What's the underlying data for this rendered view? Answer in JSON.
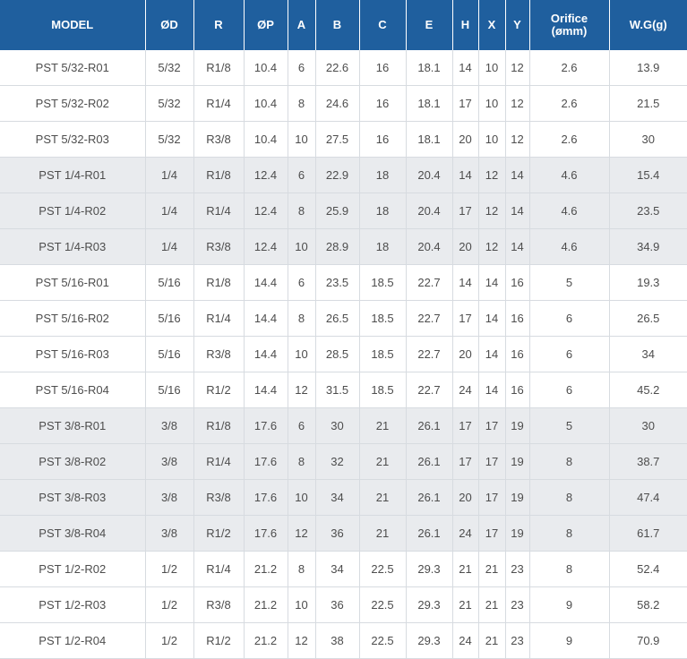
{
  "table": {
    "headers": [
      "MODEL",
      "ØD",
      "R",
      "ØP",
      "A",
      "B",
      "C",
      "E",
      "H",
      "X",
      "Y",
      "Orifice\n(ømm)",
      "W.G(g)"
    ],
    "rows": [
      {
        "shaded": false,
        "cells": [
          "PST 5/32-R01",
          "5/32",
          "R1/8",
          "10.4",
          "6",
          "22.6",
          "16",
          "18.1",
          "14",
          "10",
          "12",
          "2.6",
          "13.9"
        ]
      },
      {
        "shaded": false,
        "cells": [
          "PST 5/32-R02",
          "5/32",
          "R1/4",
          "10.4",
          "8",
          "24.6",
          "16",
          "18.1",
          "17",
          "10",
          "12",
          "2.6",
          "21.5"
        ]
      },
      {
        "shaded": false,
        "cells": [
          "PST 5/32-R03",
          "5/32",
          "R3/8",
          "10.4",
          "10",
          "27.5",
          "16",
          "18.1",
          "20",
          "10",
          "12",
          "2.6",
          "30"
        ]
      },
      {
        "shaded": true,
        "cells": [
          "PST 1/4-R01",
          "1/4",
          "R1/8",
          "12.4",
          "6",
          "22.9",
          "18",
          "20.4",
          "14",
          "12",
          "14",
          "4.6",
          "15.4"
        ]
      },
      {
        "shaded": true,
        "cells": [
          "PST 1/4-R02",
          "1/4",
          "R1/4",
          "12.4",
          "8",
          "25.9",
          "18",
          "20.4",
          "17",
          "12",
          "14",
          "4.6",
          "23.5"
        ]
      },
      {
        "shaded": true,
        "cells": [
          "PST 1/4-R03",
          "1/4",
          "R3/8",
          "12.4",
          "10",
          "28.9",
          "18",
          "20.4",
          "20",
          "12",
          "14",
          "4.6",
          "34.9"
        ]
      },
      {
        "shaded": false,
        "cells": [
          "PST 5/16-R01",
          "5/16",
          "R1/8",
          "14.4",
          "6",
          "23.5",
          "18.5",
          "22.7",
          "14",
          "14",
          "16",
          "5",
          "19.3"
        ]
      },
      {
        "shaded": false,
        "cells": [
          "PST 5/16-R02",
          "5/16",
          "R1/4",
          "14.4",
          "8",
          "26.5",
          "18.5",
          "22.7",
          "17",
          "14",
          "16",
          "6",
          "26.5"
        ]
      },
      {
        "shaded": false,
        "cells": [
          "PST 5/16-R03",
          "5/16",
          "R3/8",
          "14.4",
          "10",
          "28.5",
          "18.5",
          "22.7",
          "20",
          "14",
          "16",
          "6",
          "34"
        ]
      },
      {
        "shaded": false,
        "cells": [
          "PST 5/16-R04",
          "5/16",
          "R1/2",
          "14.4",
          "12",
          "31.5",
          "18.5",
          "22.7",
          "24",
          "14",
          "16",
          "6",
          "45.2"
        ]
      },
      {
        "shaded": true,
        "cells": [
          "PST 3/8-R01",
          "3/8",
          "R1/8",
          "17.6",
          "6",
          "30",
          "21",
          "26.1",
          "17",
          "17",
          "19",
          "5",
          "30"
        ]
      },
      {
        "shaded": true,
        "cells": [
          "PST 3/8-R02",
          "3/8",
          "R1/4",
          "17.6",
          "8",
          "32",
          "21",
          "26.1",
          "17",
          "17",
          "19",
          "8",
          "38.7"
        ]
      },
      {
        "shaded": true,
        "cells": [
          "PST 3/8-R03",
          "3/8",
          "R3/8",
          "17.6",
          "10",
          "34",
          "21",
          "26.1",
          "20",
          "17",
          "19",
          "8",
          "47.4"
        ]
      },
      {
        "shaded": true,
        "cells": [
          "PST 3/8-R04",
          "3/8",
          "R1/2",
          "17.6",
          "12",
          "36",
          "21",
          "26.1",
          "24",
          "17",
          "19",
          "8",
          "61.7"
        ]
      },
      {
        "shaded": false,
        "cells": [
          "PST 1/2-R02",
          "1/2",
          "R1/4",
          "21.2",
          "8",
          "34",
          "22.5",
          "29.3",
          "21",
          "21",
          "23",
          "8",
          "52.4"
        ]
      },
      {
        "shaded": false,
        "cells": [
          "PST 1/2-R03",
          "1/2",
          "R3/8",
          "21.2",
          "10",
          "36",
          "22.5",
          "29.3",
          "21",
          "21",
          "23",
          "9",
          "58.2"
        ]
      },
      {
        "shaded": false,
        "cells": [
          "PST 1/2-R04",
          "1/2",
          "R1/2",
          "21.2",
          "12",
          "38",
          "22.5",
          "29.3",
          "24",
          "21",
          "23",
          "9",
          "70.9"
        ]
      }
    ]
  },
  "colors": {
    "header_bg": "#1f5f9e",
    "header_text": "#ffffff",
    "row_shade": "#e9ebee",
    "row_plain": "#ffffff",
    "cell_text": "#4d4d4d",
    "grid_line": "#d7dbe0"
  }
}
